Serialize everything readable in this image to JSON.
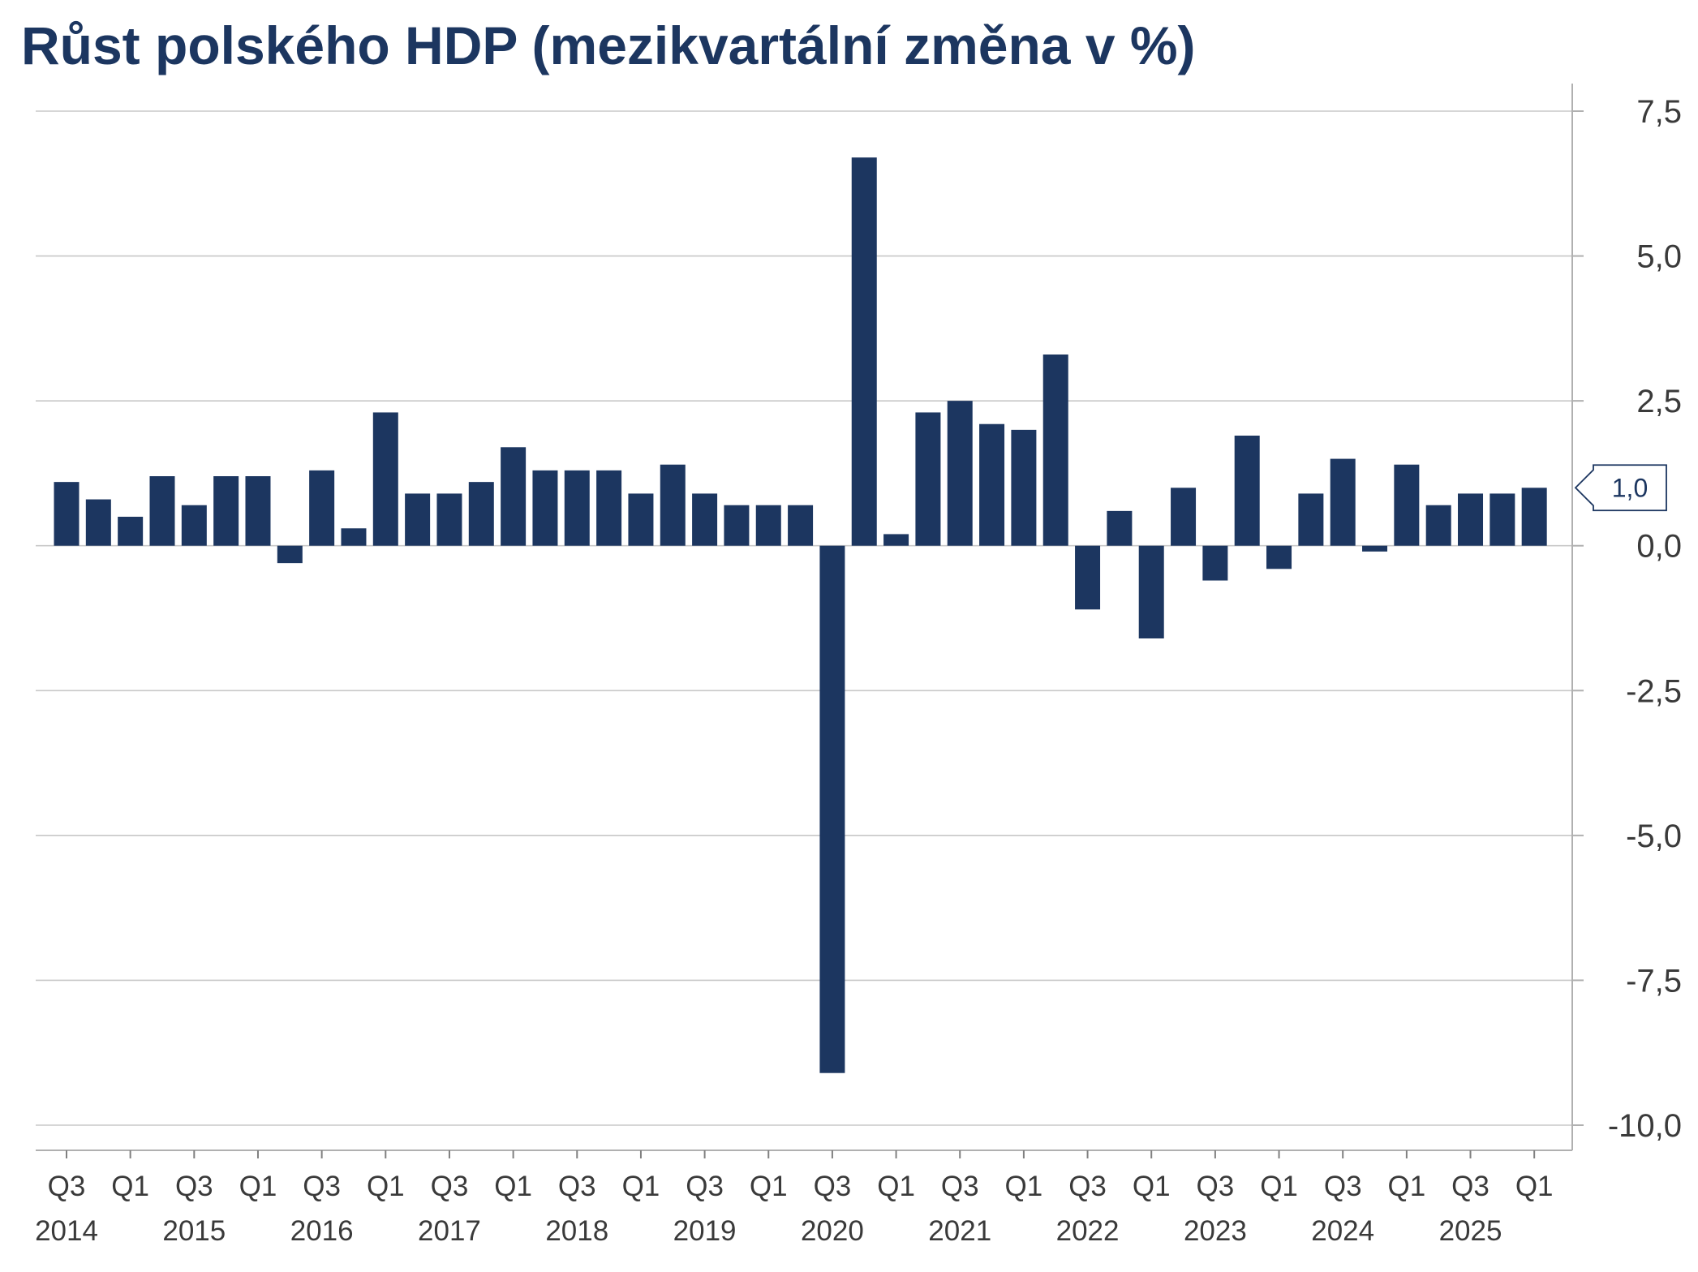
{
  "chart_data": {
    "type": "bar",
    "title": "Růst polského HDP (mezikvartální změna v %)",
    "xlabel": "",
    "ylabel": "",
    "ylim": [
      -10.0,
      7.5
    ],
    "y_ticks": [
      "7,5",
      "5,0",
      "2,5",
      "0,0",
      "-2,5",
      "-5,0",
      "-7,5",
      "-10,0"
    ],
    "y_tick_values": [
      7.5,
      5.0,
      2.5,
      0.0,
      -2.5,
      -5.0,
      -7.5,
      -10.0
    ],
    "y_axis_position": "right",
    "grid": true,
    "bar_color": "#1c3660",
    "categories": [
      "Q3 2014",
      "Q4 2014",
      "Q1 2015",
      "Q2 2015",
      "Q3 2015",
      "Q4 2015",
      "Q1 2016",
      "Q2 2016",
      "Q3 2016",
      "Q4 2016",
      "Q1 2017",
      "Q2 2017",
      "Q3 2017",
      "Q4 2017",
      "Q1 2018",
      "Q2 2018",
      "Q3 2018",
      "Q4 2018",
      "Q1 2019",
      "Q2 2019",
      "Q3 2019",
      "Q4 2019",
      "Q1 2020",
      "Q2 2020",
      "Q3 2020",
      "Q4 2020",
      "Q1 2021",
      "Q2 2021",
      "Q3 2021",
      "Q4 2021",
      "Q1 2022",
      "Q2 2022",
      "Q3 2022",
      "Q4 2022",
      "Q1 2023",
      "Q2 2023",
      "Q3 2023",
      "Q4 2023",
      "Q1 2024",
      "Q2 2024",
      "Q3 2024",
      "Q4 2024",
      "Q1 2025",
      "Q2 2025",
      "Q3 2025",
      "Q4 2025",
      "Q1 2026"
    ],
    "values": [
      1.1,
      0.8,
      0.5,
      1.2,
      0.7,
      1.2,
      1.2,
      -0.3,
      1.3,
      0.3,
      2.3,
      0.9,
      0.9,
      1.1,
      1.7,
      1.3,
      1.3,
      1.3,
      0.9,
      1.4,
      0.9,
      0.7,
      0.7,
      0.7,
      -9.1,
      6.7,
      0.2,
      2.3,
      2.5,
      2.1,
      2.0,
      3.3,
      -1.1,
      0.6,
      -1.6,
      1.0,
      -0.6,
      1.9,
      -0.4,
      0.9,
      1.5,
      -0.1,
      1.4,
      0.7,
      0.9,
      0.9,
      1.0
    ],
    "x_quarter_labels": [
      "Q3",
      "Q1",
      "Q3",
      "Q1",
      "Q3",
      "Q1",
      "Q3",
      "Q1",
      "Q3",
      "Q1",
      "Q3",
      "Q1",
      "Q3",
      "Q1",
      "Q3",
      "Q1",
      "Q3",
      "Q1",
      "Q3",
      "Q1",
      "Q3",
      "Q1",
      "Q3",
      "Q1"
    ],
    "x_year_labels": [
      "2014",
      "2015",
      "2016",
      "2017",
      "2018",
      "2019",
      "2020",
      "2021",
      "2022",
      "2023",
      "2024",
      "2025"
    ],
    "last_value_label": "1,0"
  }
}
